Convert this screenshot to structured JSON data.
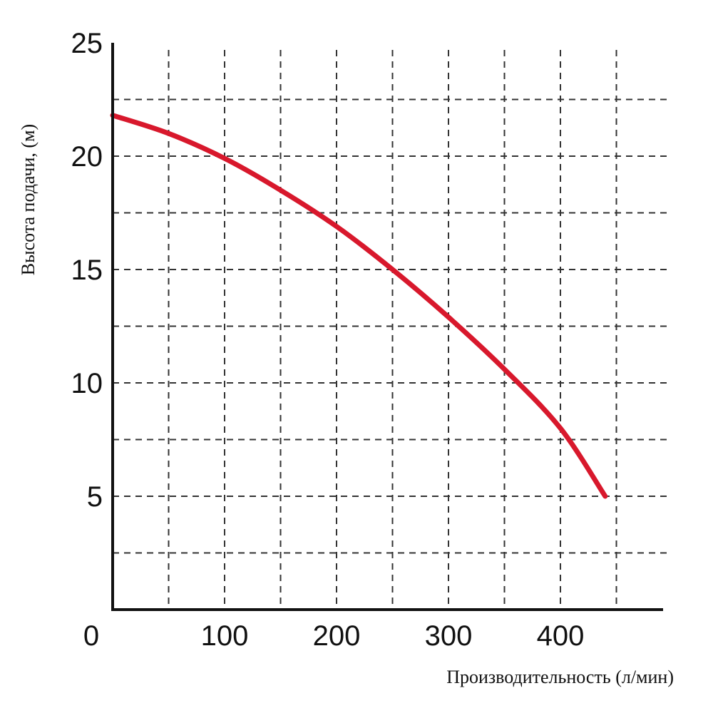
{
  "chart_data": {
    "type": "line",
    "xlabel": "Производительность (л/мин)",
    "ylabel": "Высота подачи, (м)",
    "xlim": [
      0,
      500
    ],
    "ylim": [
      0,
      25
    ],
    "x_ticks": [
      0,
      100,
      200,
      300,
      400
    ],
    "y_ticks": [
      5,
      10,
      15,
      20,
      25
    ],
    "x_tick_labels": [
      "0",
      "100",
      "200",
      "300",
      "400"
    ],
    "y_tick_labels": [
      "5",
      "10",
      "15",
      "20",
      "25"
    ],
    "grid": true,
    "grid_x_step": 50,
    "grid_y_step": 2.5,
    "series": [
      {
        "color": "#d8182c",
        "x": [
          0,
          50,
          100,
          150,
          200,
          250,
          300,
          350,
          400,
          440
        ],
        "y": [
          21.8,
          21.0,
          19.9,
          18.5,
          16.9,
          15.0,
          12.9,
          10.6,
          8.0,
          5.0
        ]
      }
    ]
  }
}
